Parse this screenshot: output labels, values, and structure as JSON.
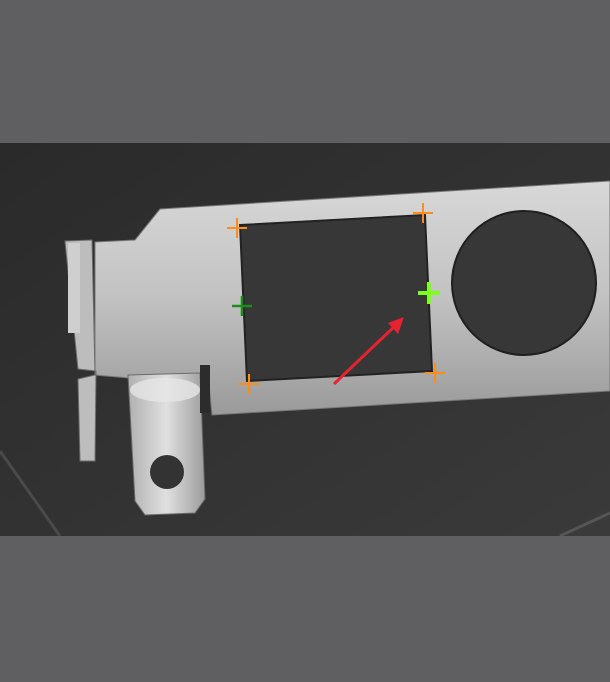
{
  "viewer": {
    "background_color": "#5f5f62",
    "image": {
      "description_icon": "grayscale-camera-frame",
      "part": "metal-bracket-with-square-window",
      "background_color": "#2f2f2f"
    },
    "markers": {
      "corner_color": "#ff8c1a",
      "left_mid_color": "#1f8a1f",
      "right_mid_color": "#7cff1a",
      "arrow_color": "#e8232f",
      "corner_icon": "plus-icon",
      "arrow_icon": "arrow-icon"
    }
  }
}
